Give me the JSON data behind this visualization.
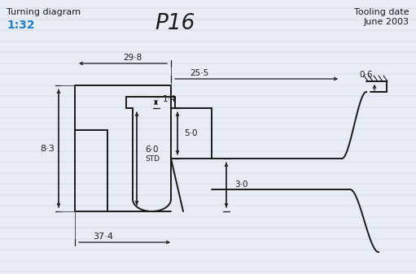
{
  "title": "P16",
  "subtitle_left": "Turning diagram",
  "scale_left": "1:32",
  "tooling_date_1": "Tooling date",
  "tooling_date_2": "June 2003",
  "bg_color": "#e8edf5",
  "line_color": "#1a1a1a",
  "scale_color": "#1a7fd4",
  "notebook_line_color": "#c5cfe0",
  "dim_29_8": "29·8",
  "dim_25_5": "25·5",
  "dim_1_4": "1·4",
  "dim_8_3": "8·3",
  "dim_6_0": "6·0",
  "dim_std": "STD",
  "dim_5_0": "5·0",
  "dim_3_0": "3·0",
  "dim_0_6": "0·6",
  "dim_37_4": "37·4",
  "figsize": [
    5.11,
    3.37
  ],
  "dpi": 100
}
